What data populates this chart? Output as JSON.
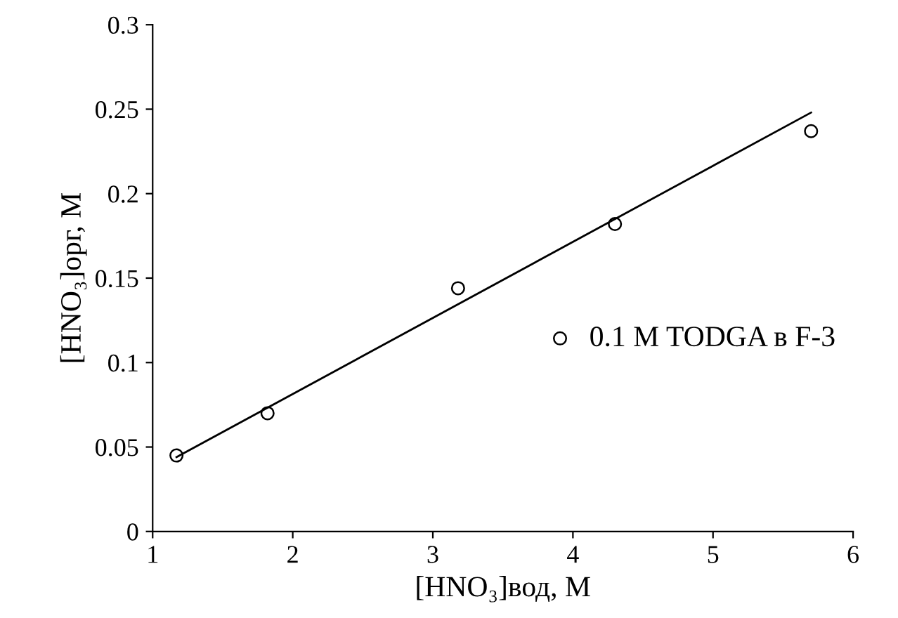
{
  "chart_data": {
    "type": "scatter",
    "xlabel": "[HNO₃]вод, М",
    "ylabel": "[HNO₃]орг, М",
    "xlim": [
      1,
      6
    ],
    "xticks": [
      1,
      2,
      3,
      4,
      5,
      6
    ],
    "ylim": [
      0,
      0.3
    ],
    "yticks": [
      0,
      0.05,
      0.1,
      0.15,
      0.2,
      0.25,
      0.3
    ],
    "grid": false,
    "legend": "right",
    "series": [
      {
        "name": "0.1 M TODGA в F-3",
        "color": "#000000",
        "marker": "circle",
        "x": [
          1.17,
          1.82,
          3.18,
          4.3,
          5.7
        ],
        "values": [
          0.045,
          0.07,
          0.144,
          0.182,
          0.237
        ]
      },
      {
        "type": "line",
        "color": "#000000",
        "x": [
          1.17,
          5.7
        ],
        "values": [
          0.044,
          0.248
        ],
        "line_style": "solid"
      }
    ]
  }
}
